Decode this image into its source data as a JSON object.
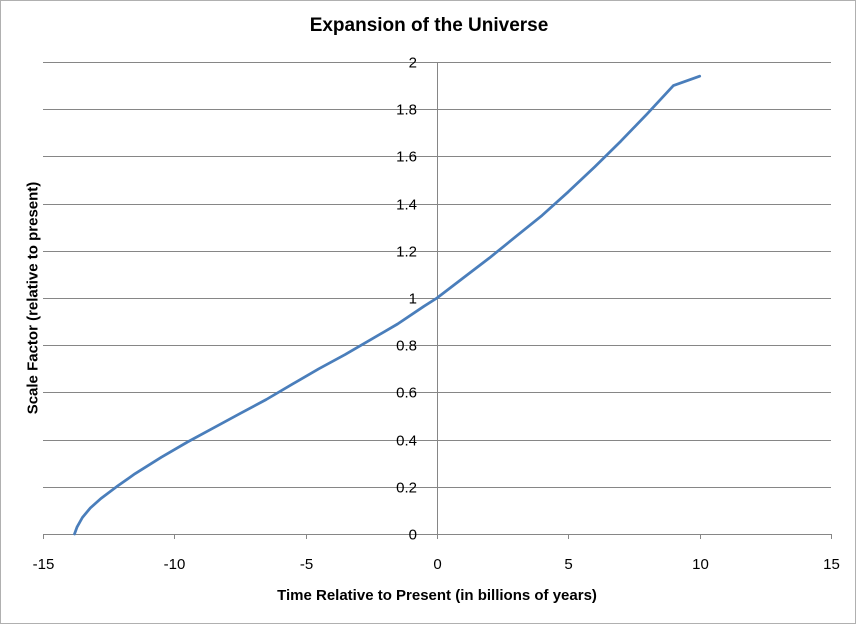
{
  "chart_data": {
    "type": "line",
    "title": "Expansion of the Universe",
    "xlabel": "Time Relative to Present (in billions of years)",
    "ylabel": "Scale Factor (relative to present)",
    "xlim": [
      -15,
      15
    ],
    "ylim": [
      0,
      2
    ],
    "x_ticks": [
      -15,
      -10,
      -5,
      0,
      5,
      10,
      15
    ],
    "y_ticks": [
      0,
      0.2,
      0.4,
      0.6,
      0.8,
      1,
      1.2,
      1.4,
      1.6,
      1.8,
      2
    ],
    "grid": "horizontal",
    "legend": "none",
    "series": [
      {
        "color": "#4a7ebb",
        "x": [
          -13.8,
          -13.7,
          -13.5,
          -13.2,
          -12.8,
          -12.2,
          -11.5,
          -10.5,
          -9.5,
          -8.5,
          -7.5,
          -6.5,
          -5.5,
          -4.5,
          -3.5,
          -2.5,
          -1.5,
          -0.5,
          0,
          1,
          2,
          3,
          4,
          5,
          6,
          7,
          8,
          9,
          10
        ],
        "y": [
          0.0,
          0.03,
          0.07,
          0.11,
          0.15,
          0.2,
          0.255,
          0.325,
          0.39,
          0.45,
          0.51,
          0.57,
          0.635,
          0.7,
          0.76,
          0.825,
          0.89,
          0.965,
          1.0,
          1.085,
          1.17,
          1.26,
          1.35,
          1.45,
          1.555,
          1.665,
          1.78,
          1.9,
          1.94
        ]
      }
    ]
  }
}
